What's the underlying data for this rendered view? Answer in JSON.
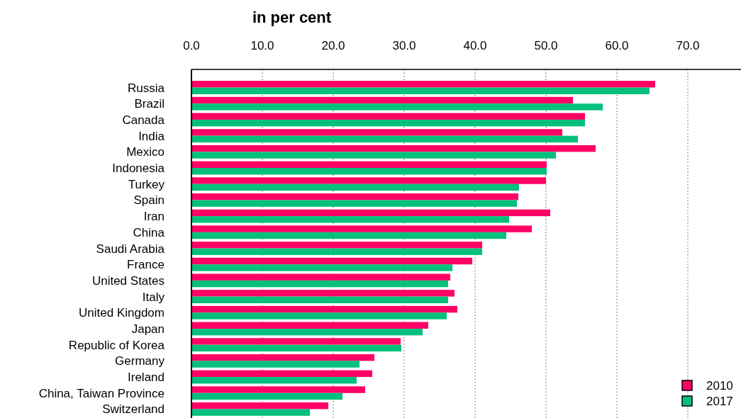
{
  "chart_data": {
    "type": "bar",
    "orientation": "horizontal",
    "xlabel": "in per cent",
    "categories": [
      "Russia",
      "Brazil",
      "Canada",
      "India",
      "Mexico",
      "Indonesia",
      "Turkey",
      "Spain",
      "Iran",
      "China",
      "Saudi Arabia",
      "France",
      "United States",
      "Italy",
      "United Kingdom",
      "Japan",
      "Republic of Korea",
      "Germany",
      "Ireland",
      "China, Taiwan Province",
      "Switzerland"
    ],
    "series": [
      {
        "name": "2010",
        "color": "#ff0066",
        "values": [
          65.4,
          53.8,
          55.5,
          52.3,
          57.0,
          50.1,
          50.0,
          46.1,
          50.6,
          48.0,
          41.0,
          39.6,
          36.5,
          37.1,
          37.5,
          33.4,
          29.5,
          25.8,
          25.5,
          24.5,
          19.3
        ]
      },
      {
        "name": "2017",
        "color": "#04c07c",
        "values": [
          64.6,
          58.0,
          55.5,
          54.5,
          51.4,
          50.1,
          46.2,
          45.9,
          44.8,
          44.4,
          41.0,
          36.8,
          36.2,
          36.2,
          36.0,
          32.6,
          29.6,
          23.7,
          23.3,
          21.3,
          16.7
        ]
      }
    ],
    "xlim": [
      0,
      77.5
    ],
    "xticks": [
      {
        "value": 0,
        "label": "0.0"
      },
      {
        "value": 10,
        "label": "10.0"
      },
      {
        "value": 20,
        "label": "20.0"
      },
      {
        "value": 30,
        "label": "30.0"
      },
      {
        "value": 40,
        "label": "40.0"
      },
      {
        "value": 50,
        "label": "50.0"
      },
      {
        "value": 60,
        "label": "60.0"
      },
      {
        "value": 70,
        "label": "70.0"
      }
    ],
    "grid": "x",
    "legend": "bottom right"
  }
}
